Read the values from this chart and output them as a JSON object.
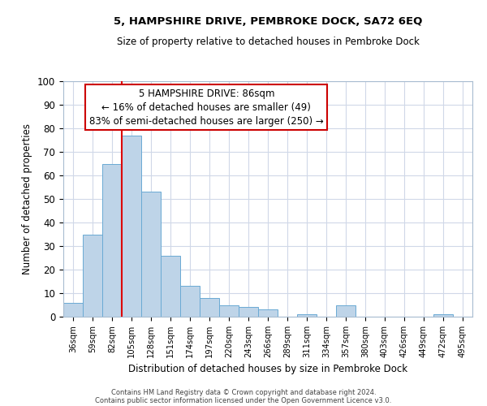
{
  "title1": "5, HAMPSHIRE DRIVE, PEMBROKE DOCK, SA72 6EQ",
  "title2": "Size of property relative to detached houses in Pembroke Dock",
  "xlabel": "Distribution of detached houses by size in Pembroke Dock",
  "ylabel": "Number of detached properties",
  "bar_labels": [
    "36sqm",
    "59sqm",
    "82sqm",
    "105sqm",
    "128sqm",
    "151sqm",
    "174sqm",
    "197sqm",
    "220sqm",
    "243sqm",
    "266sqm",
    "289sqm",
    "311sqm",
    "334sqm",
    "357sqm",
    "380sqm",
    "403sqm",
    "426sqm",
    "449sqm",
    "472sqm",
    "495sqm"
  ],
  "bar_values": [
    6,
    35,
    65,
    77,
    53,
    26,
    13,
    8,
    5,
    4,
    3,
    0,
    1,
    0,
    5,
    0,
    0,
    0,
    0,
    1,
    0
  ],
  "bar_color": "#bed4e8",
  "bar_edge_color": "#6aaad4",
  "ylim": [
    0,
    100
  ],
  "yticks": [
    0,
    10,
    20,
    30,
    40,
    50,
    60,
    70,
    80,
    90,
    100
  ],
  "vline_color": "#dd0000",
  "annotation_title": "5 HAMPSHIRE DRIVE: 86sqm",
  "annotation_line1": "← 16% of detached houses are smaller (49)",
  "annotation_line2": "83% of semi-detached houses are larger (250) →",
  "annotation_box_color": "#ffffff",
  "annotation_box_edge": "#cc0000",
  "footer1": "Contains HM Land Registry data © Crown copyright and database right 2024.",
  "footer2": "Contains public sector information licensed under the Open Government Licence v3.0.",
  "bg_color": "#ffffff",
  "grid_color": "#d0d8e8"
}
